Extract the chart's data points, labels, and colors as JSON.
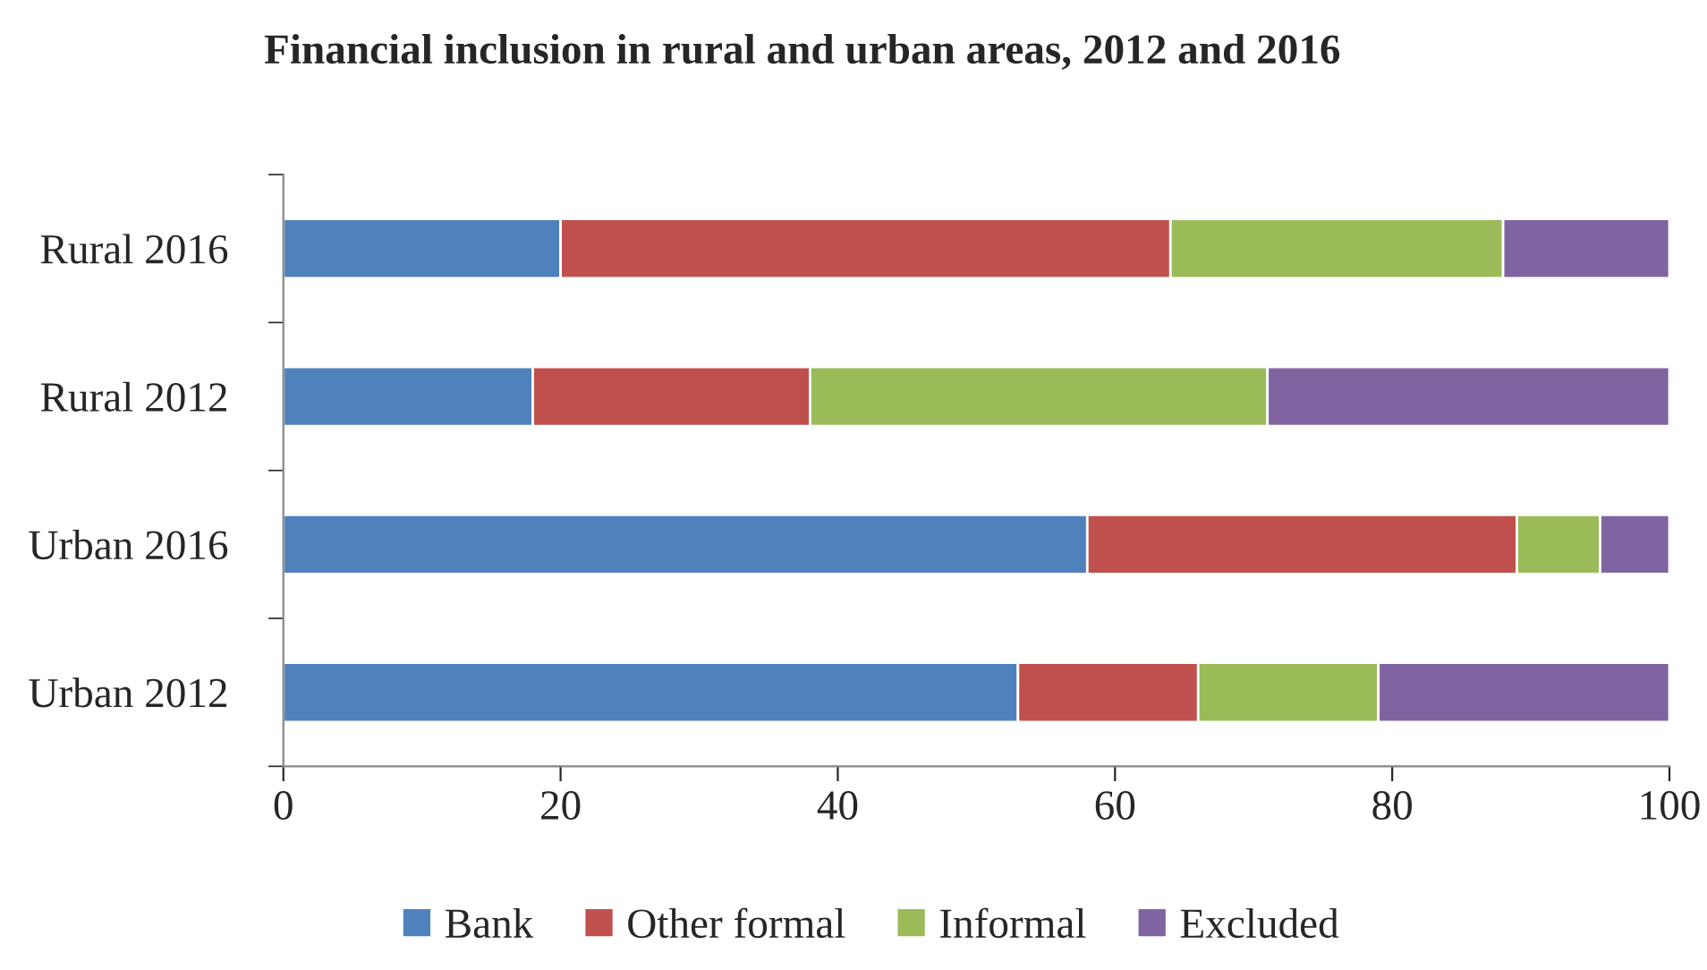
{
  "chart_data": {
    "type": "bar",
    "orientation": "horizontal",
    "stacked": true,
    "title": "Financial inclusion in rural and urban areas, 2012 and 2016",
    "categories": [
      "Rural 2016",
      "Rural 2012",
      "Urban 2016",
      "Urban 2012"
    ],
    "series": [
      {
        "name": "Bank",
        "color": "#4f81bd",
        "values": [
          20,
          18,
          58,
          53
        ]
      },
      {
        "name": "Other formal",
        "color": "#c0504d",
        "values": [
          44,
          20,
          31,
          13
        ]
      },
      {
        "name": "Informal",
        "color": "#9bbb59",
        "values": [
          24,
          33,
          6,
          13
        ]
      },
      {
        "name": "Excluded",
        "color": "#8064a2",
        "values": [
          12,
          29,
          5,
          21
        ]
      }
    ],
    "xlim": [
      0,
      100
    ],
    "xticks": [
      0,
      20,
      40,
      60,
      80,
      100
    ],
    "grid": false,
    "legend": "bottom"
  }
}
